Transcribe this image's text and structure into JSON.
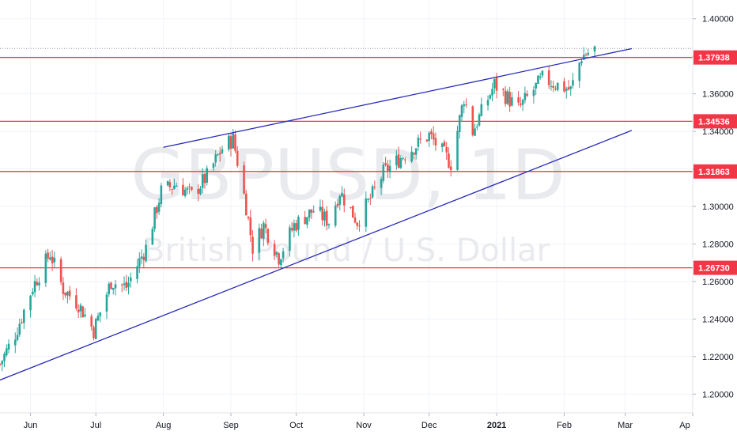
{
  "chart_data": {
    "type": "candlestick",
    "symbol_watermark": "GBPUSD, 1D",
    "description_watermark": "British Pound / U.S. Dollar",
    "y_axis": {
      "range": [
        1.19,
        1.41
      ],
      "ticks": [
        "1.20000",
        "1.22000",
        "1.24000",
        "1.26000",
        "1.28000",
        "1.30000",
        "1.32000",
        "1.34000",
        "1.36000",
        "1.38000",
        "1.40000"
      ]
    },
    "x_axis": {
      "range": [
        "2020-05-18",
        "2021-04-01"
      ],
      "ticks": [
        {
          "label": "Jun",
          "date": "2020-06-01"
        },
        {
          "label": "Jul",
          "date": "2020-07-01"
        },
        {
          "label": "Aug",
          "date": "2020-08-01"
        },
        {
          "label": "Sep",
          "date": "2020-09-01"
        },
        {
          "label": "Oct",
          "date": "2020-10-01"
        },
        {
          "label": "Nov",
          "date": "2020-11-01"
        },
        {
          "label": "Dec",
          "date": "2020-12-01"
        },
        {
          "label": "2021",
          "date": "2021-01-01",
          "bold": true
        },
        {
          "label": "Feb",
          "date": "2021-02-01"
        },
        {
          "label": "Mar",
          "date": "2021-03-01"
        },
        {
          "label": "Ap",
          "date": "2021-04-01"
        }
      ]
    },
    "horizontal_levels": [
      {
        "label": "1.37938",
        "value": 1.37938,
        "color": "#f23645"
      },
      {
        "label": "1.34536",
        "value": 1.34536,
        "color": "#f23645"
      },
      {
        "label": "1.31863",
        "value": 1.31863,
        "color": "#f23645"
      },
      {
        "label": "1.26730",
        "value": 1.2673,
        "color": "#f23645"
      }
    ],
    "trendlines": [
      {
        "name": "lower-channel",
        "from": {
          "date": "2020-05-18",
          "value": 1.2075
        },
        "to": {
          "date": "2021-03-04",
          "value": 1.3405
        },
        "color": "#2929b8"
      },
      {
        "name": "upper-channel",
        "from": {
          "date": "2020-08-01",
          "value": 1.3315
        },
        "to": {
          "date": "2021-03-04",
          "value": 1.3841
        },
        "color": "#2929b8"
      }
    ],
    "last_price_line": 1.3842,
    "anchors": [
      {
        "date": "2020-05-18",
        "close": 1.216
      },
      {
        "date": "2020-05-25",
        "close": 1.232
      },
      {
        "date": "2020-06-02",
        "close": 1.257
      },
      {
        "date": "2020-06-10",
        "close": 1.275
      },
      {
        "date": "2020-06-16",
        "close": 1.256
      },
      {
        "date": "2020-06-23",
        "close": 1.248
      },
      {
        "date": "2020-06-30",
        "close": 1.234
      },
      {
        "date": "2020-07-08",
        "close": 1.26
      },
      {
        "date": "2020-07-15",
        "close": 1.257
      },
      {
        "date": "2020-07-24",
        "close": 1.278
      },
      {
        "date": "2020-07-31",
        "close": 1.308
      },
      {
        "date": "2020-08-07",
        "close": 1.312
      },
      {
        "date": "2020-08-14",
        "close": 1.306
      },
      {
        "date": "2020-08-21",
        "close": 1.316
      },
      {
        "date": "2020-08-28",
        "close": 1.331
      },
      {
        "date": "2020-09-02",
        "close": 1.336
      },
      {
        "date": "2020-09-08",
        "close": 1.3
      },
      {
        "date": "2020-09-11",
        "close": 1.278
      },
      {
        "date": "2020-09-16",
        "close": 1.29
      },
      {
        "date": "2020-09-23",
        "close": 1.273
      },
      {
        "date": "2020-09-30",
        "close": 1.29
      },
      {
        "date": "2020-10-09",
        "close": 1.298
      },
      {
        "date": "2020-10-16",
        "close": 1.292
      },
      {
        "date": "2020-10-21",
        "close": 1.308
      },
      {
        "date": "2020-10-29",
        "close": 1.292
      },
      {
        "date": "2020-11-04",
        "close": 1.304
      },
      {
        "date": "2020-11-10",
        "close": 1.318
      },
      {
        "date": "2020-11-20",
        "close": 1.328
      },
      {
        "date": "2020-12-01",
        "close": 1.338
      },
      {
        "date": "2020-12-11",
        "close": 1.323
      },
      {
        "date": "2020-12-17",
        "close": 1.358
      },
      {
        "date": "2020-12-21",
        "close": 1.34
      },
      {
        "date": "2020-12-31",
        "close": 1.365
      },
      {
        "date": "2021-01-11",
        "close": 1.352
      },
      {
        "date": "2021-01-22",
        "close": 1.368
      },
      {
        "date": "2021-02-04",
        "close": 1.362
      },
      {
        "date": "2021-02-09",
        "close": 1.38
      },
      {
        "date": "2021-02-15",
        "close": 1.384
      }
    ]
  }
}
